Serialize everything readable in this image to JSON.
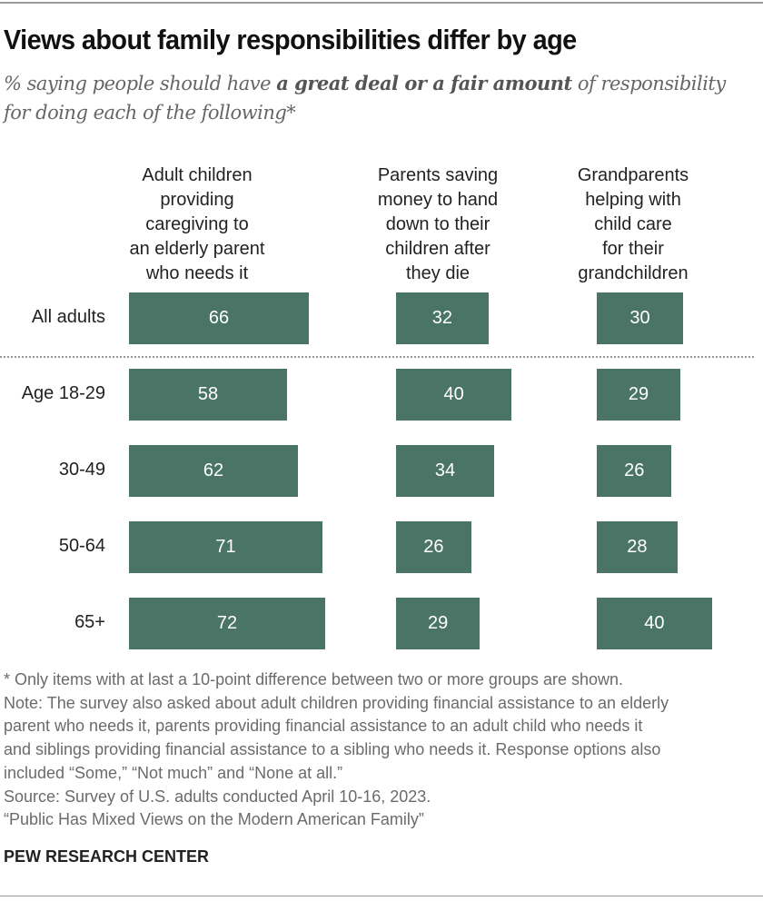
{
  "chart_data": {
    "type": "bar",
    "title": "Views about family responsibilities differ by age",
    "subtitle_pre": "% saying people should have ",
    "subtitle_bold": "a great deal or a fair amount",
    "subtitle_post": " of responsibility for doing each of the following*",
    "categories": [
      "All adults",
      "Age 18-29",
      "30-49",
      "50-64",
      "65+"
    ],
    "series": [
      {
        "name": "Adult children\nproviding\ncaregiving to\nan elderly parent\nwho needs it",
        "values": [
          66,
          58,
          62,
          71,
          72
        ]
      },
      {
        "name": "Parents saving\nmoney to hand\ndown to their\nchildren after\nthey die",
        "values": [
          32,
          40,
          34,
          26,
          29
        ]
      },
      {
        "name": "Grandparents\nhelping with\nchild care\nfor their\ngrandchildren",
        "values": [
          30,
          29,
          26,
          28,
          40
        ]
      }
    ],
    "bar_color": "#4a7566"
  },
  "notes": [
    "* Only items with at last a 10-point difference between two or more groups are shown.",
    "Note: The survey also asked about adult children providing financial assistance to an elderly",
    "parent who needs it, parents providing financial assistance to an adult child who needs it",
    "and siblings providing financial assistance to a sibling who needs it. Response options also",
    "included “Some,” “Not much” and “None at all.”",
    "Source: Survey of U.S. adults conducted April 10-16, 2023.",
    "“Public Has Mixed Views on the Modern American Family”"
  ],
  "brand": "PEW RESEARCH CENTER"
}
